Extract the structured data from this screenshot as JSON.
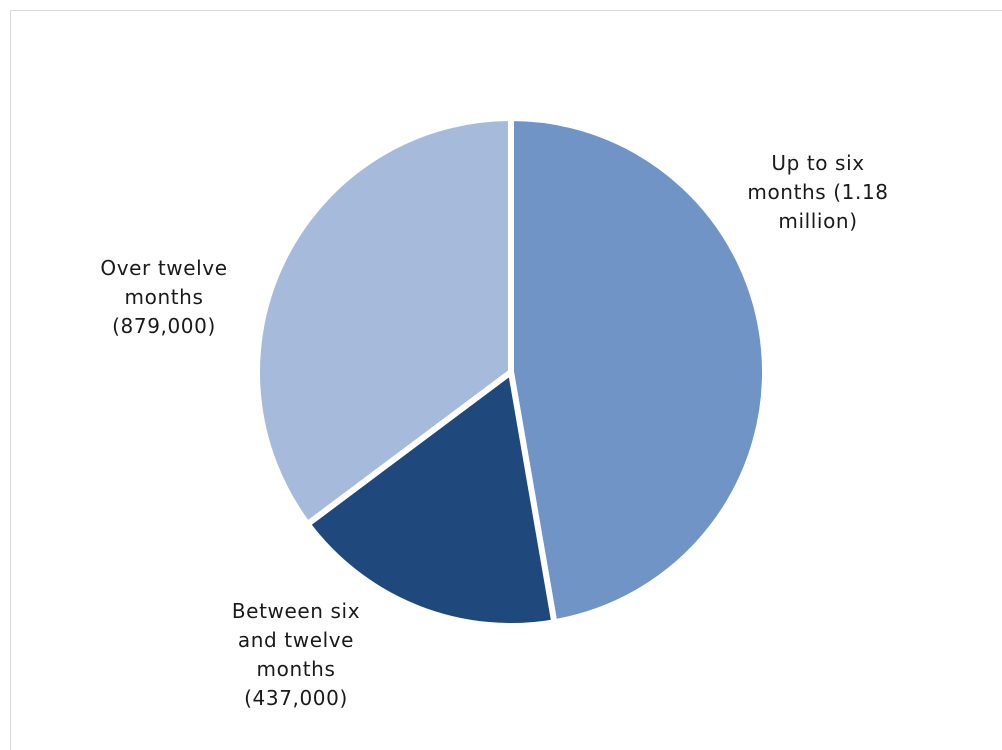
{
  "chart_data": {
    "type": "pie",
    "title": "",
    "slices": [
      {
        "name": "Up to six months",
        "value": 1180000,
        "label_lines": [
          "Up to six",
          "months (1.18",
          "million)"
        ],
        "color": "#7094c6"
      },
      {
        "name": "Between six and twelve months",
        "value": 437000,
        "label_lines": [
          "Between six",
          "and twelve",
          "months",
          "(437,000)"
        ],
        "color": "#1f497d"
      },
      {
        "name": "Over twelve months",
        "value": 879000,
        "label_lines": [
          "Over twelve",
          "months",
          "(879,000)"
        ],
        "color": "#a6badb"
      }
    ],
    "start_angle": "12 o'clock",
    "direction": "clockwise",
    "legend": "none"
  }
}
